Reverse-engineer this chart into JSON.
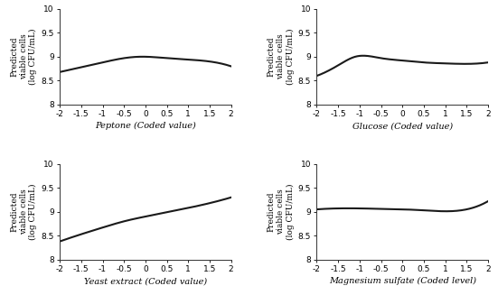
{
  "ylim": [
    8,
    10
  ],
  "xlim": [
    -2,
    2
  ],
  "xticks": [
    -2,
    -1.5,
    -1,
    -0.5,
    0,
    0.5,
    1,
    1.5,
    2
  ],
  "yticks": [
    8,
    8.5,
    9,
    9.5,
    10
  ],
  "ylabel": "Predicted viable cells (log CFU/mL)",
  "subplots": [
    {
      "xlabel": "Peptone (Coded value)",
      "pts_x": [
        -2,
        -1.5,
        -1,
        -0.5,
        -0.1,
        0.5,
        1,
        1.5,
        2
      ],
      "pts_y": [
        8.68,
        8.78,
        8.88,
        8.97,
        9.0,
        8.97,
        8.94,
        8.9,
        8.8
      ]
    },
    {
      "xlabel": "Glucose (Coded value)",
      "pts_x": [
        -2,
        -1.7,
        -1.5,
        -1.1,
        -0.5,
        0,
        0.5,
        1,
        1.5,
        2
      ],
      "pts_y": [
        8.6,
        8.72,
        8.82,
        9.0,
        8.97,
        8.92,
        8.88,
        8.86,
        8.85,
        8.88
      ]
    },
    {
      "xlabel": "Yeast extract (Coded value)",
      "pts_x": [
        -2,
        -1.5,
        -1,
        -0.5,
        0,
        0.5,
        1,
        1.5,
        2
      ],
      "pts_y": [
        8.38,
        8.53,
        8.67,
        8.8,
        8.9,
        8.99,
        9.08,
        9.18,
        9.3
      ]
    },
    {
      "xlabel": "Magnesium sulfate (Coded level)",
      "pts_x": [
        -2,
        -1.5,
        -1,
        -0.5,
        0,
        0.5,
        1,
        1.5,
        2
      ],
      "pts_y": [
        9.05,
        9.07,
        9.07,
        9.06,
        9.05,
        9.03,
        9.01,
        9.05,
        9.22
      ]
    }
  ],
  "line_color": "#1a1a1a",
  "line_width": 1.5,
  "tick_fontsize": 6.5,
  "label_fontsize": 7.0,
  "ylabel_fontsize": 6.5,
  "background_color": "#ffffff"
}
